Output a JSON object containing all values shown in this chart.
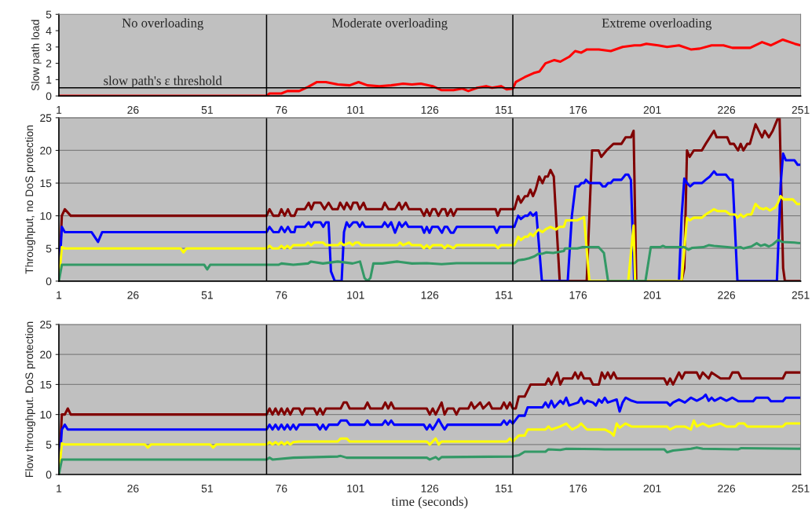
{
  "chart_data": [
    {
      "type": "line",
      "ylabel": "Slow path load",
      "xlim": [
        1,
        251
      ],
      "xticks": [
        1,
        26,
        51,
        76,
        101,
        126,
        151,
        176,
        201,
        226,
        251
      ],
      "ylim": [
        0,
        5
      ],
      "yticks": [
        0,
        1,
        2,
        3,
        4,
        5
      ],
      "grid": false,
      "annotations": [
        "No overloading",
        "Moderate overloading",
        "Extreme overloading"
      ],
      "ref_lines": [
        {
          "axis": "y",
          "value": 0.5,
          "label": "slow path's ε threshold"
        },
        {
          "axis": "x",
          "value": 71
        },
        {
          "axis": "x",
          "value": 154
        }
      ],
      "series": [
        {
          "color": "#ff0000",
          "x": [
            1,
            71,
            72,
            76,
            78,
            82,
            85,
            88,
            91,
            95,
            99,
            102,
            105,
            109,
            113,
            117,
            120,
            123,
            127,
            130,
            134,
            137,
            139,
            142,
            145,
            147,
            150,
            152,
            154,
            155,
            158,
            161,
            163,
            165,
            168,
            170,
            173,
            175,
            177,
            179,
            183,
            187,
            191,
            195,
            197,
            199,
            203,
            206,
            210,
            214,
            217,
            221,
            225,
            228,
            234,
            238,
            241,
            245,
            249,
            251
          ],
          "values": [
            0,
            0,
            0.15,
            0.15,
            0.3,
            0.3,
            0.55,
            0.85,
            0.85,
            0.7,
            0.65,
            0.85,
            0.65,
            0.6,
            0.65,
            0.75,
            0.7,
            0.75,
            0.6,
            0.35,
            0.35,
            0.45,
            0.3,
            0.5,
            0.6,
            0.5,
            0.6,
            0.4,
            0.45,
            0.85,
            1.15,
            1.4,
            1.5,
            2.0,
            2.2,
            2.1,
            2.4,
            2.75,
            2.65,
            2.85,
            2.85,
            2.75,
            3.0,
            3.1,
            3.1,
            3.2,
            3.1,
            3.0,
            3.1,
            2.85,
            2.9,
            3.1,
            3.1,
            2.95,
            2.95,
            3.3,
            3.1,
            3.45,
            3.2,
            3.1
          ]
        }
      ]
    },
    {
      "type": "line",
      "ylabel": "Throughput, no DoS protection",
      "xlim": [
        1,
        251
      ],
      "xticks": [
        1,
        26,
        51,
        76,
        101,
        126,
        151,
        176,
        201,
        226,
        251
      ],
      "ylim": [
        0,
        25
      ],
      "yticks": [
        0,
        5,
        10,
        15,
        20,
        25
      ],
      "grid": "y",
      "ref_lines": [
        {
          "axis": "x",
          "value": 71
        },
        {
          "axis": "x",
          "value": 154
        }
      ],
      "series": [
        {
          "color": "#800000",
          "x": [
            1,
            2,
            3,
            5,
            71,
            72,
            73.3,
            75.1,
            76,
            77.1,
            78.2,
            79.2,
            80.4,
            81.3,
            83.9,
            85.2,
            86.1,
            87,
            89.2,
            90.5,
            91.9,
            93.2,
            95,
            95.8,
            97.1,
            98,
            99.4,
            100.2,
            101.5,
            102.4,
            103.7,
            104.6,
            109.9,
            110.8,
            112.1,
            114.3,
            115.7,
            116.6,
            117.9,
            119,
            122.9,
            124.1,
            125,
            126,
            126.9,
            127.9,
            128.9,
            130.1,
            131.2,
            131.9,
            133.1,
            134,
            135.1,
            148.2,
            148.9,
            149.8,
            154.5,
            155.8,
            156.7,
            158.1,
            159,
            159.9,
            160.8,
            161.7,
            162.9,
            164,
            164.9,
            165.8,
            166.7,
            167.8,
            169.8,
            178.9,
            180.7,
            182.9,
            183.8,
            185.6,
            187.9,
            190.6,
            192,
            193.8,
            194.7,
            195.6,
            210.9,
            211.8,
            212.7,
            213.6,
            215,
            217.7,
            219,
            220.4,
            221.8,
            222.7,
            226.3,
            227.2,
            228.5,
            229.9,
            230.8,
            231.7,
            233,
            233.9,
            235.8,
            238,
            238.9,
            240.3,
            241.6,
            242.5,
            243.4,
            243.9,
            245.1,
            245.7,
            251
          ],
          "values": [
            0,
            10,
            11,
            10,
            10,
            11,
            10,
            10,
            11,
            10,
            11,
            10,
            10,
            11,
            11,
            12,
            11,
            12,
            12,
            11,
            12,
            11,
            11,
            12,
            11,
            12,
            11,
            12,
            12,
            11,
            12,
            11,
            11,
            12,
            11,
            11,
            12,
            11,
            12,
            11,
            11,
            10,
            11,
            10,
            11,
            11,
            10,
            11,
            11,
            10,
            11,
            10,
            11,
            11,
            10,
            11,
            11,
            13,
            12,
            13,
            13,
            14,
            13,
            14,
            16,
            15,
            16,
            16,
            17,
            16,
            0,
            0,
            20,
            20,
            19,
            20,
            21,
            21,
            22,
            22,
            23,
            0,
            0,
            2,
            20,
            19,
            20,
            20,
            21,
            22,
            23,
            22,
            22,
            21,
            21,
            20,
            21,
            20,
            21,
            21,
            24,
            22,
            23,
            22,
            23,
            24,
            25,
            25,
            2,
            0,
            0
          ]
        },
        {
          "color": "#0000ff",
          "x": [
            1,
            2,
            3,
            12,
            14.2,
            15.6,
            71,
            72,
            73.3,
            75.1,
            76,
            77.1,
            78.2,
            79.2,
            80.4,
            80.8,
            83.9,
            85.2,
            86.1,
            87,
            89.2,
            90.1,
            91,
            91.9,
            92.7,
            94,
            96.3,
            97.1,
            98,
            98.9,
            100.2,
            101.5,
            102.4,
            103.3,
            104.2,
            109.9,
            110.8,
            111.9,
            113,
            114.3,
            115.7,
            116.6,
            117.9,
            118.8,
            123.3,
            124.1,
            125,
            125.9,
            126.8,
            128.8,
            130.1,
            131,
            131.9,
            133.1,
            134,
            135.1,
            147.7,
            148.6,
            149.5,
            154.5,
            155.8,
            156.7,
            158.1,
            159,
            159.9,
            160.8,
            161.9,
            163.8,
            172.5,
            173.9,
            175.1,
            176.2,
            177.1,
            178,
            178.6,
            179.8,
            183.4,
            184.3,
            185.2,
            186.1,
            187,
            187.9,
            190.6,
            192,
            192.9,
            193.8,
            194.9,
            210,
            210.9,
            211.8,
            212.7,
            213.8,
            215,
            217.7,
            219,
            220.4,
            221.8,
            222.7,
            225.8,
            227.2,
            228.1,
            229.7,
            243,
            244.3,
            245.1,
            246,
            248.9,
            250,
            251
          ],
          "values": [
            0,
            8.3,
            7.5,
            7.5,
            6,
            7.5,
            7.5,
            8.3,
            7.5,
            7.5,
            8.3,
            7.5,
            8.3,
            7.5,
            7.5,
            8.3,
            8.3,
            9,
            8.3,
            9,
            9,
            8.3,
            9,
            9,
            1.5,
            0,
            0,
            7.5,
            9,
            8.3,
            9,
            9,
            8.3,
            9,
            8.3,
            8.3,
            9,
            8.3,
            9,
            7.4,
            9,
            8.3,
            9,
            8.3,
            8.3,
            7.4,
            8.3,
            7.4,
            8.3,
            8.3,
            7.4,
            8.3,
            8.3,
            7.4,
            7.4,
            8.3,
            8.3,
            7.4,
            8.3,
            8.3,
            10,
            9.5,
            10,
            10,
            10.5,
            10,
            10.5,
            0,
            0,
            10,
            14.5,
            14.5,
            15,
            15,
            15.5,
            15,
            15,
            14.5,
            14.5,
            15,
            15,
            15.5,
            15.5,
            16.3,
            16.3,
            15.5,
            0,
            0,
            10,
            15.7,
            15,
            14.5,
            15,
            15,
            15.5,
            16,
            16.8,
            16.3,
            16.3,
            15.5,
            15.5,
            0,
            0,
            15,
            19.5,
            18.5,
            18.5,
            17.8,
            17.8
          ]
        },
        {
          "color": "#ffff00",
          "x": [
            1,
            2,
            3,
            42,
            43,
            44,
            71,
            72,
            73,
            75,
            76,
            77,
            78,
            79,
            80,
            84,
            85,
            86,
            87,
            90,
            91,
            95,
            96,
            97,
            99,
            100,
            101,
            102,
            103,
            115,
            116,
            117,
            119,
            120,
            123,
            124,
            125,
            126,
            127,
            130,
            131,
            132,
            134,
            135,
            148,
            149,
            150,
            154.5,
            155.8,
            156.7,
            158.1,
            159,
            159.9,
            160.8,
            162.6,
            164,
            165.3,
            166.7,
            168.5,
            169.8,
            171.2,
            171.9,
            175.7,
            178,
            179.8,
            192.9,
            194.7,
            195.2,
            210.9,
            212.7,
            213.6,
            215,
            217.7,
            219,
            221.8,
            223.1,
            225.8,
            227.2,
            229,
            229.7,
            230.8,
            231.7,
            233,
            234.4,
            235.8,
            237.1,
            238.5,
            239.4,
            240.7,
            242.5,
            243.4,
            244.2,
            245.3,
            248.4,
            249.8,
            251
          ],
          "values": [
            0,
            5.2,
            5,
            5,
            4.4,
            5,
            5,
            5.4,
            5,
            5,
            5.4,
            5,
            5.4,
            5,
            5.5,
            5.5,
            5.9,
            5.5,
            5.9,
            5.9,
            5.5,
            5.5,
            5.9,
            5.5,
            5.9,
            5.5,
            5.9,
            5.9,
            5.5,
            5.5,
            5.9,
            5.5,
            5.9,
            5.5,
            5.5,
            5.05,
            5.5,
            5.05,
            5.5,
            5.5,
            5.05,
            5.5,
            5.05,
            5.5,
            5.5,
            5.05,
            5.5,
            5.5,
            6.8,
            6.3,
            6.8,
            6.8,
            7.3,
            6.9,
            7.9,
            7.5,
            8,
            8.3,
            7.9,
            8.3,
            8.3,
            9.3,
            9.3,
            9.8,
            0,
            0,
            8.5,
            0,
            0,
            9.7,
            9.3,
            9.7,
            9.7,
            10.2,
            11,
            10.7,
            10.7,
            10.2,
            10.2,
            9.7,
            10.2,
            9.8,
            10.2,
            10.2,
            11.8,
            11.2,
            11,
            11.2,
            10.8,
            11.3,
            12,
            13,
            12.5,
            12.5,
            11.8,
            11.8
          ]
        },
        {
          "color": "#339966",
          "x": [
            1,
            2,
            50,
            51,
            52,
            71,
            75,
            76,
            80,
            85,
            86,
            90,
            95,
            100,
            102.5,
            104,
            105,
            106,
            107,
            110,
            115,
            120,
            125,
            130,
            135,
            150,
            154.5,
            155.8,
            157.6,
            159.5,
            161.3,
            162.6,
            164,
            165.3,
            167.6,
            171.2,
            171.6,
            175.7,
            176.6,
            177.5,
            182.9,
            184.7,
            186.1,
            198.7,
            200.5,
            203.7,
            204.6,
            205.5,
            211.8,
            213.2,
            214.5,
            218.2,
            220,
            221.8,
            226.3,
            229,
            230.8,
            231.7,
            233.5,
            234.4,
            236.2,
            237.6,
            238.9,
            240.3,
            241.6,
            243.4,
            244.8,
            248.9,
            251
          ],
          "values": [
            0,
            2.5,
            2.5,
            1.8,
            2.5,
            2.5,
            2.5,
            2.7,
            2.5,
            2.7,
            3,
            2.7,
            3,
            2.7,
            3,
            0.5,
            0,
            0.5,
            2.7,
            2.7,
            3,
            2.7,
            2.75,
            2.6,
            2.75,
            2.75,
            2.75,
            3.2,
            3.3,
            3.5,
            3.8,
            4.2,
            4.2,
            4.4,
            4.3,
            4.6,
            5,
            5,
            5.1,
            5.2,
            5.2,
            4.3,
            0,
            0,
            5.2,
            5.2,
            5.4,
            5.2,
            5.2,
            4.8,
            5.1,
            5.2,
            5.5,
            5.4,
            5.2,
            5.1,
            5.2,
            5,
            5.2,
            5.3,
            5.8,
            5.4,
            5.6,
            5.3,
            5.6,
            6.3,
            6,
            5.9,
            5.8
          ]
        }
      ]
    },
    {
      "type": "line",
      "ylabel": "Flow throughput. DoS protection",
      "xlabel": "time (seconds)",
      "xlim": [
        1,
        251
      ],
      "xticks": [
        1,
        26,
        51,
        76,
        101,
        126,
        151,
        176,
        201,
        226,
        251
      ],
      "ylim": [
        0,
        25
      ],
      "yticks": [
        0,
        5,
        10,
        15,
        20,
        25
      ],
      "grid": "y",
      "ref_lines": [
        {
          "axis": "x",
          "value": 71
        },
        {
          "axis": "x",
          "value": 154
        }
      ],
      "series": [
        {
          "color": "#800000",
          "x": [
            1,
            2,
            3,
            4,
            5,
            71,
            72,
            73,
            74,
            75,
            76,
            77,
            78,
            79,
            80,
            82,
            83,
            84,
            87,
            88,
            89,
            90,
            91,
            96,
            97,
            98,
            99,
            104,
            105,
            106,
            110,
            111,
            112,
            113,
            114,
            125,
            126,
            127,
            128,
            129,
            130,
            131,
            132,
            134,
            135,
            136,
            139,
            140,
            141,
            143,
            144,
            146,
            147,
            150,
            151,
            152,
            153,
            154,
            155,
            156,
            158,
            159,
            160,
            165,
            166,
            167,
            168,
            169,
            170,
            171,
            174,
            175,
            176,
            177,
            178,
            180,
            181,
            183,
            184,
            185,
            186,
            187,
            188,
            189,
            194,
            205,
            206,
            207,
            208,
            209,
            210,
            211,
            212,
            216,
            217,
            218,
            220,
            221,
            224,
            227,
            228,
            230,
            231,
            245,
            246,
            251
          ],
          "values": [
            0,
            10,
            10,
            11,
            10,
            10,
            11,
            10,
            11,
            10,
            11,
            10,
            11,
            10,
            11,
            11,
            10,
            11,
            11,
            10,
            11,
            10,
            11,
            11,
            12,
            12,
            11,
            11,
            12,
            11,
            11,
            12,
            11,
            12,
            11,
            11,
            10,
            11,
            10,
            11,
            12,
            10,
            11,
            11,
            10,
            11,
            11,
            12,
            11,
            12,
            11,
            12,
            11,
            11,
            12,
            11,
            12,
            11,
            11,
            13,
            13,
            14,
            15,
            15,
            16,
            15,
            16,
            17,
            15,
            16,
            16,
            17,
            16,
            17,
            16,
            16,
            15,
            15,
            17,
            16,
            17,
            16,
            17,
            16,
            16,
            16,
            15,
            16,
            15,
            16,
            17,
            16,
            17,
            17,
            16,
            17,
            16,
            17,
            16,
            16,
            17,
            17,
            16,
            16,
            17,
            17
          ]
        },
        {
          "color": "#0000ff",
          "x": [
            1,
            2,
            3,
            4,
            71,
            72,
            73,
            74,
            75,
            76,
            77,
            78,
            79,
            80,
            81,
            82,
            88,
            89,
            90,
            91,
            92,
            95,
            96,
            98,
            99,
            104,
            105,
            106,
            110,
            111,
            112,
            113,
            114,
            124,
            125,
            126,
            127,
            128,
            129,
            130,
            131,
            132,
            150,
            151,
            152,
            153,
            154,
            156,
            158,
            159,
            164,
            165,
            166,
            167,
            168,
            170,
            171,
            172,
            173,
            176,
            177,
            178,
            179,
            181,
            182,
            183,
            184,
            185,
            186,
            189,
            190,
            191,
            192,
            194,
            196,
            206,
            207,
            208,
            210,
            212,
            214,
            216,
            218,
            219,
            220,
            221,
            222,
            224,
            226,
            228,
            230,
            235,
            236,
            240,
            241,
            245,
            246,
            251
          ],
          "values": [
            0,
            7.5,
            8.3,
            7.5,
            7.5,
            8.3,
            7.5,
            8.3,
            7.5,
            8.3,
            7.5,
            8.3,
            7.5,
            8.3,
            7.5,
            8.3,
            8.3,
            7.5,
            8.3,
            7.5,
            8.3,
            8.3,
            9,
            9,
            8.3,
            8.3,
            9,
            8.3,
            8.3,
            9,
            8.3,
            9,
            8.3,
            8.3,
            7.5,
            8.3,
            7.5,
            8.3,
            9.2,
            8.3,
            7.5,
            8.3,
            8.3,
            9,
            8.3,
            9,
            8.5,
            9.8,
            9.8,
            11.2,
            11.2,
            12,
            11.2,
            12.3,
            11.2,
            12.3,
            11.8,
            12.8,
            11.5,
            12,
            12.8,
            11.8,
            12.3,
            12,
            11.5,
            12.5,
            12,
            12.8,
            12,
            12.5,
            10.5,
            12,
            12.8,
            12.3,
            12,
            12,
            11.5,
            12,
            12.5,
            12,
            12.8,
            12.3,
            12.8,
            13.3,
            12.3,
            12.8,
            12.3,
            12.8,
            12.3,
            12.8,
            12.2,
            12.2,
            12.8,
            12.8,
            12.2,
            12.2,
            12.8,
            12.8
          ]
        },
        {
          "color": "#ffff00",
          "x": [
            1,
            2,
            3,
            30,
            31,
            32,
            52,
            53,
            54,
            71,
            72,
            73,
            74,
            75,
            76,
            77,
            78,
            79,
            80,
            82,
            95,
            96,
            98,
            99,
            125,
            126,
            127,
            128,
            129,
            130,
            152,
            153,
            154,
            156,
            158,
            159,
            165,
            166,
            167,
            170,
            172,
            174,
            176,
            177,
            179,
            185,
            187,
            188,
            189,
            190,
            192,
            194,
            196,
            206,
            207,
            209,
            212,
            214,
            215,
            216,
            218,
            220,
            224,
            226,
            229,
            230,
            232,
            233,
            245,
            246,
            251
          ],
          "values": [
            0,
            5.2,
            5,
            5,
            4.5,
            5,
            5,
            4.5,
            5,
            5,
            5.4,
            5,
            5.4,
            5,
            5.4,
            5,
            5.4,
            5,
            5.4,
            5.5,
            5.5,
            6,
            6,
            5.5,
            5.5,
            5,
            5.5,
            6,
            5,
            5.5,
            5.5,
            6,
            5.5,
            6.5,
            6.5,
            7.5,
            7.5,
            8,
            7.5,
            8,
            8.5,
            7.5,
            8,
            8.5,
            7.5,
            7.5,
            7,
            6.5,
            8.5,
            7.8,
            8.5,
            8,
            8,
            8,
            7.5,
            8,
            8,
            7.5,
            9,
            8,
            8.5,
            8,
            8.5,
            8,
            8,
            8.5,
            8.5,
            8,
            8,
            8.5,
            8.5
          ]
        },
        {
          "color": "#339966",
          "x": [
            1,
            2,
            71,
            72,
            73,
            80,
            95,
            96,
            98,
            125,
            126,
            128,
            129,
            130,
            154,
            156,
            158,
            165,
            166,
            170,
            172,
            185,
            195,
            205,
            206,
            208,
            214,
            216,
            218,
            230,
            231,
            251
          ],
          "values": [
            0,
            2.5,
            2.5,
            2.8,
            2.5,
            2.8,
            3,
            3.1,
            2.8,
            2.8,
            2.5,
            2.9,
            2.5,
            2.9,
            3,
            3.2,
            3.8,
            3.8,
            4.2,
            4.1,
            4.3,
            4.2,
            4.2,
            4.2,
            3.7,
            4,
            4.3,
            4.5,
            4.3,
            4.2,
            4.4,
            4.3
          ]
        }
      ]
    }
  ]
}
